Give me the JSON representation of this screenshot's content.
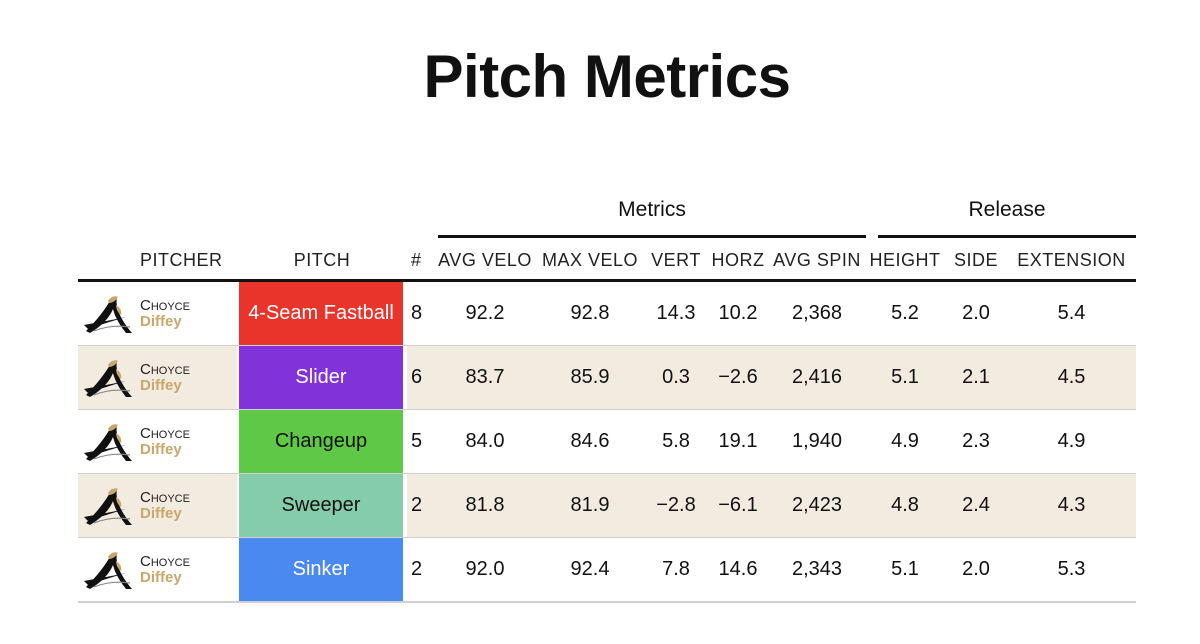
{
  "title": "Pitch Metrics",
  "groups": {
    "metrics": "Metrics",
    "release": "Release"
  },
  "columns": {
    "pitcher": "PITCHER",
    "pitch": "PITCH",
    "count": "#",
    "avg_velo": "AVG VELO",
    "max_velo": "MAX VELO",
    "vert": "VERT",
    "horz": "HORZ",
    "avg_spin": "AVG SPIN",
    "height": "HEIGHT",
    "side": "SIDE",
    "extension": "EXTENSION"
  },
  "colors": {
    "four_seam": "#e8342a",
    "slider": "#8133d9",
    "changeup": "#5fc846",
    "sweeper": "#85ccaa",
    "sinker": "#4a8af0",
    "alt_row": "#f2ece0",
    "name_accent": "#c8a86a"
  },
  "rows": [
    {
      "first": "Choyce",
      "last": "Diffey",
      "pitch": "4-Seam Fastball",
      "pitch_color": "#e8342a",
      "pitch_text_color": "#ffffff",
      "count": "8",
      "avg_velo": "92.2",
      "max_velo": "92.8",
      "vert": "14.3",
      "horz": "10.2",
      "avg_spin": "2,368",
      "height": "5.2",
      "side": "2.0",
      "extension": "5.4"
    },
    {
      "first": "Choyce",
      "last": "Diffey",
      "pitch": "Slider",
      "pitch_color": "#8133d9",
      "pitch_text_color": "#ffffff",
      "count": "6",
      "avg_velo": "83.7",
      "max_velo": "85.9",
      "vert": "0.3",
      "horz": "−2.6",
      "avg_spin": "2,416",
      "height": "5.1",
      "side": "2.1",
      "extension": "4.5"
    },
    {
      "first": "Choyce",
      "last": "Diffey",
      "pitch": "Changeup",
      "pitch_color": "#5fc846",
      "pitch_text_color": "#111111",
      "count": "5",
      "avg_velo": "84.0",
      "max_velo": "84.6",
      "vert": "5.8",
      "horz": "19.1",
      "avg_spin": "1,940",
      "height": "4.9",
      "side": "2.3",
      "extension": "4.9"
    },
    {
      "first": "Choyce",
      "last": "Diffey",
      "pitch": "Sweeper",
      "pitch_color": "#85ccaa",
      "pitch_text_color": "#111111",
      "count": "2",
      "avg_velo": "81.8",
      "max_velo": "81.9",
      "vert": "−2.8",
      "horz": "−6.1",
      "avg_spin": "2,423",
      "height": "4.8",
      "side": "2.4",
      "extension": "4.3"
    },
    {
      "first": "Choyce",
      "last": "Diffey",
      "pitch": "Sinker",
      "pitch_color": "#4a8af0",
      "pitch_text_color": "#ffffff",
      "count": "2",
      "avg_velo": "92.0",
      "max_velo": "92.4",
      "vert": "7.8",
      "horz": "14.6",
      "avg_spin": "2,343",
      "height": "5.1",
      "side": "2.0",
      "extension": "5.3"
    }
  ]
}
